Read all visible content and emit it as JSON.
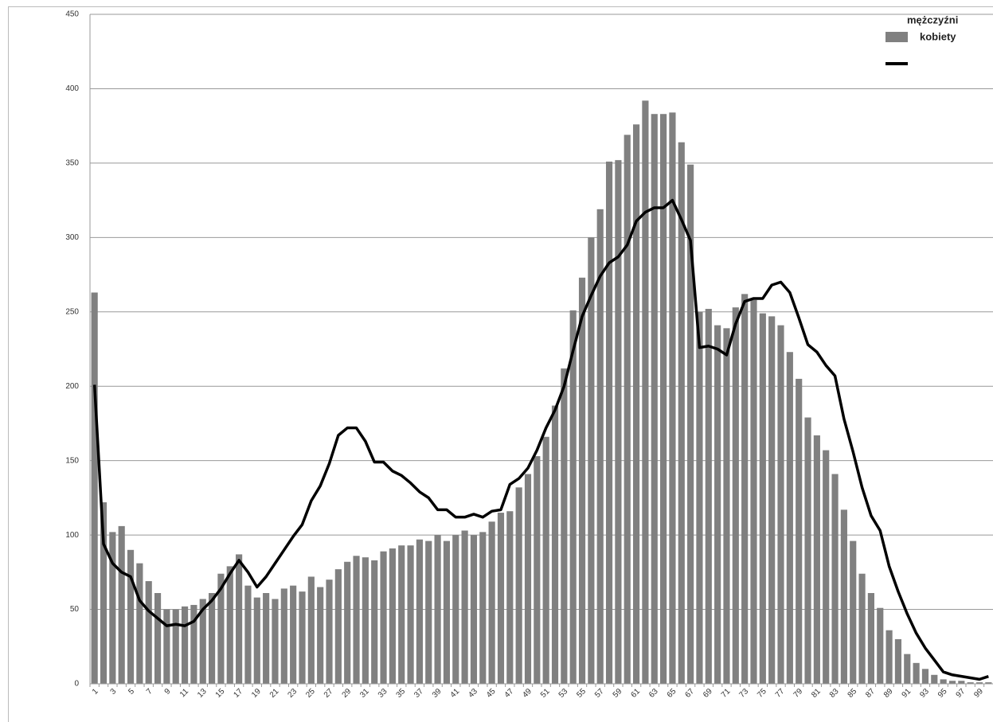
{
  "chart_data": {
    "type": "bar_line",
    "categories": [
      1,
      null,
      3,
      null,
      5,
      null,
      7,
      null,
      9,
      null,
      11,
      null,
      13,
      null,
      15,
      null,
      17,
      null,
      19,
      null,
      21,
      null,
      23,
      null,
      25,
      null,
      27,
      null,
      29,
      null,
      31,
      null,
      33,
      null,
      35,
      null,
      37,
      null,
      39,
      null,
      41,
      null,
      43,
      null,
      45,
      null,
      47,
      null,
      49,
      null,
      51,
      null,
      53,
      null,
      55,
      null,
      57,
      null,
      59,
      null,
      61,
      null,
      63,
      null,
      65,
      null,
      67,
      null,
      69,
      null,
      71,
      null,
      73,
      null,
      75,
      null,
      77,
      null,
      79,
      null,
      81,
      null,
      83,
      null,
      85,
      null,
      87,
      null,
      89,
      null,
      91,
      null,
      93,
      null,
      95,
      null,
      97,
      null,
      99,
      null
    ],
    "series": [
      {
        "name": "mężczyźni",
        "type": "bar",
        "color": "#808080",
        "values": [
          263,
          122,
          102,
          106,
          90,
          81,
          69,
          61,
          50,
          50,
          52,
          53,
          57,
          61,
          74,
          79,
          87,
          66,
          58,
          61,
          57,
          64,
          66,
          62,
          72,
          65,
          70,
          77,
          82,
          86,
          85,
          83,
          89,
          91,
          93,
          93,
          97,
          96,
          100,
          96,
          100,
          103,
          100,
          102,
          109,
          115,
          116,
          132,
          141,
          153,
          166,
          187,
          212,
          251,
          273,
          300,
          319,
          351,
          352,
          369,
          376,
          392,
          383,
          383,
          384,
          364,
          349,
          250,
          252,
          241,
          239,
          253,
          262,
          258,
          249,
          247,
          241,
          223,
          205,
          179,
          167,
          157,
          141,
          117,
          96,
          74,
          61,
          51,
          36,
          30,
          20,
          14,
          10,
          6,
          3,
          2,
          2,
          1,
          1,
          1
        ]
      },
      {
        "name": "kobiety",
        "type": "line",
        "color": "#000000",
        "values": [
          201,
          94,
          81,
          75,
          72,
          56,
          49,
          44,
          39,
          40,
          39,
          42,
          50,
          56,
          64,
          74,
          83,
          75,
          65,
          72,
          81,
          90,
          99,
          107,
          123,
          133,
          148,
          167,
          172,
          172,
          163,
          149,
          149,
          143,
          140,
          135,
          129,
          125,
          117,
          117,
          112,
          112,
          114,
          112,
          116,
          117,
          134,
          138,
          145,
          157,
          172,
          184,
          200,
          224,
          247,
          261,
          274,
          283,
          287,
          295,
          311,
          317,
          320,
          320,
          325,
          312,
          298,
          226,
          227,
          225,
          221,
          242,
          257,
          259,
          259,
          268,
          270,
          263,
          246,
          228,
          223,
          214,
          207,
          178,
          156,
          132,
          113,
          103,
          79,
          62,
          47,
          34,
          24,
          16,
          8,
          6,
          5,
          4,
          3,
          5
        ]
      }
    ],
    "ylim": [
      0,
      450
    ],
    "yticks": [
      0,
      50,
      100,
      150,
      200,
      250,
      300,
      350,
      400,
      450
    ],
    "grid": true,
    "legend": "top-right"
  }
}
